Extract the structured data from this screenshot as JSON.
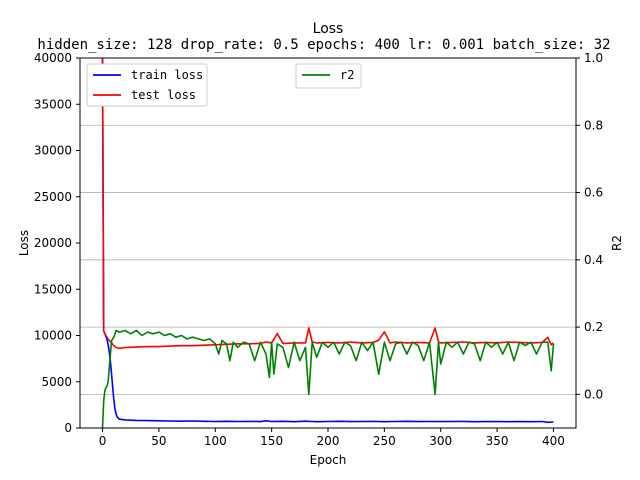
{
  "chart_data": {
    "type": "line",
    "title": "Loss",
    "subtitle": "hidden_size: 128 drop_rate: 0.5 epochs: 400 lr: 0.001 batch_size: 32",
    "xlabel": "Epoch",
    "ylabel_left": "Loss",
    "ylabel_right": "R2",
    "xlim": [
      -20,
      420
    ],
    "ylim_left": [
      0,
      40000
    ],
    "ylim_right": [
      -0.1,
      1.0
    ],
    "xticks": [
      0,
      50,
      100,
      150,
      200,
      250,
      300,
      350,
      400
    ],
    "yticks_left": [
      0,
      5000,
      10000,
      15000,
      20000,
      25000,
      30000,
      35000,
      40000
    ],
    "yticks_right": [
      0.0,
      0.2,
      0.4,
      0.6,
      0.8,
      1.0
    ],
    "grid": "horizontal lines at right-axis ticks",
    "legend_left": {
      "placement": "upper-left",
      "entries": [
        {
          "name": "train loss",
          "color": "#0000ff"
        },
        {
          "name": "test loss",
          "color": "#ff0000"
        }
      ]
    },
    "legend_right": {
      "placement": "upper-center",
      "entries": [
        {
          "name": "r2",
          "color": "#008000"
        }
      ]
    },
    "series": [
      {
        "name": "train loss",
        "axis": "left",
        "color": "#0000ff",
        "x": [
          0,
          1,
          2,
          3,
          4,
          5,
          6,
          7,
          8,
          9,
          10,
          11,
          12,
          13,
          14,
          15,
          20,
          30,
          40,
          50,
          60,
          70,
          80,
          90,
          100,
          110,
          120,
          130,
          140,
          145,
          150,
          160,
          170,
          180,
          185,
          190,
          200,
          210,
          220,
          230,
          240,
          250,
          260,
          270,
          280,
          290,
          300,
          310,
          320,
          330,
          340,
          350,
          360,
          370,
          380,
          390,
          395,
          400
        ],
        "y": [
          40000,
          10500,
          10200,
          9900,
          9500,
          9000,
          8200,
          7200,
          5800,
          4400,
          3100,
          2100,
          1500,
          1200,
          1050,
          950,
          880,
          820,
          800,
          780,
          760,
          740,
          760,
          720,
          700,
          720,
          700,
          710,
          690,
          780,
          700,
          720,
          680,
          740,
          700,
          680,
          700,
          720,
          690,
          700,
          710,
          680,
          700,
          720,
          690,
          700,
          690,
          700,
          710,
          680,
          690,
          700,
          680,
          690,
          680,
          700,
          620,
          650
        ]
      },
      {
        "name": "test loss",
        "axis": "left",
        "color": "#ff0000",
        "x": [
          0,
          1,
          2,
          3,
          5,
          8,
          10,
          12,
          15,
          20,
          30,
          40,
          50,
          60,
          70,
          80,
          90,
          100,
          110,
          120,
          130,
          140,
          145,
          150,
          155,
          160,
          170,
          180,
          183,
          186,
          190,
          200,
          210,
          220,
          230,
          240,
          245,
          250,
          255,
          260,
          270,
          280,
          290,
          295,
          298,
          300,
          310,
          320,
          330,
          340,
          350,
          360,
          370,
          380,
          390,
          395,
          398,
          400
        ],
        "y": [
          40000,
          10500,
          10200,
          10000,
          9600,
          9200,
          8900,
          8700,
          8600,
          8700,
          8750,
          8800,
          8800,
          8850,
          8900,
          8900,
          8950,
          9000,
          9050,
          9100,
          9100,
          9150,
          9300,
          9200,
          10200,
          9150,
          9200,
          9200,
          10800,
          9300,
          9200,
          9250,
          9200,
          9300,
          9200,
          9250,
          9500,
          10400,
          9200,
          9300,
          9200,
          9250,
          9200,
          10800,
          9300,
          9200,
          9250,
          9300,
          9200,
          9250,
          9200,
          9300,
          9250,
          9200,
          9250,
          9800,
          9000,
          9200
        ]
      },
      {
        "name": "r2",
        "axis": "right",
        "color": "#008000",
        "x": [
          0,
          1,
          2,
          3,
          4,
          5,
          6,
          7,
          8,
          10,
          12,
          15,
          20,
          25,
          30,
          35,
          40,
          45,
          50,
          55,
          60,
          65,
          70,
          75,
          80,
          85,
          90,
          95,
          100,
          103,
          106,
          110,
          113,
          116,
          120,
          125,
          130,
          135,
          140,
          145,
          148,
          150,
          152,
          155,
          160,
          165,
          170,
          175,
          180,
          183,
          186,
          190,
          195,
          200,
          205,
          210,
          215,
          220,
          225,
          230,
          235,
          240,
          245,
          250,
          255,
          260,
          265,
          270,
          275,
          280,
          285,
          290,
          295,
          298,
          300,
          305,
          310,
          315,
          320,
          325,
          330,
          335,
          340,
          345,
          350,
          355,
          360,
          365,
          370,
          375,
          380,
          385,
          390,
          395,
          398,
          400
        ],
        "y": [
          -0.1,
          -0.02,
          0.01,
          0.02,
          0.025,
          0.04,
          0.08,
          0.12,
          0.16,
          0.17,
          0.19,
          0.185,
          0.19,
          0.18,
          0.19,
          0.175,
          0.185,
          0.18,
          0.185,
          0.175,
          0.18,
          0.17,
          0.175,
          0.165,
          0.17,
          0.165,
          0.16,
          0.165,
          0.15,
          0.12,
          0.16,
          0.15,
          0.1,
          0.155,
          0.14,
          0.155,
          0.15,
          0.1,
          0.155,
          0.12,
          0.05,
          0.155,
          0.06,
          0.15,
          0.14,
          0.08,
          0.155,
          0.1,
          0.14,
          0.0,
          0.155,
          0.11,
          0.155,
          0.14,
          0.155,
          0.12,
          0.155,
          0.145,
          0.1,
          0.155,
          0.13,
          0.155,
          0.06,
          0.155,
          0.1,
          0.15,
          0.155,
          0.12,
          0.155,
          0.145,
          0.1,
          0.155,
          0.0,
          0.155,
          0.09,
          0.155,
          0.14,
          0.155,
          0.12,
          0.155,
          0.15,
          0.1,
          0.155,
          0.14,
          0.155,
          0.12,
          0.155,
          0.1,
          0.155,
          0.145,
          0.155,
          0.12,
          0.155,
          0.155,
          0.07,
          0.15
        ]
      }
    ]
  }
}
